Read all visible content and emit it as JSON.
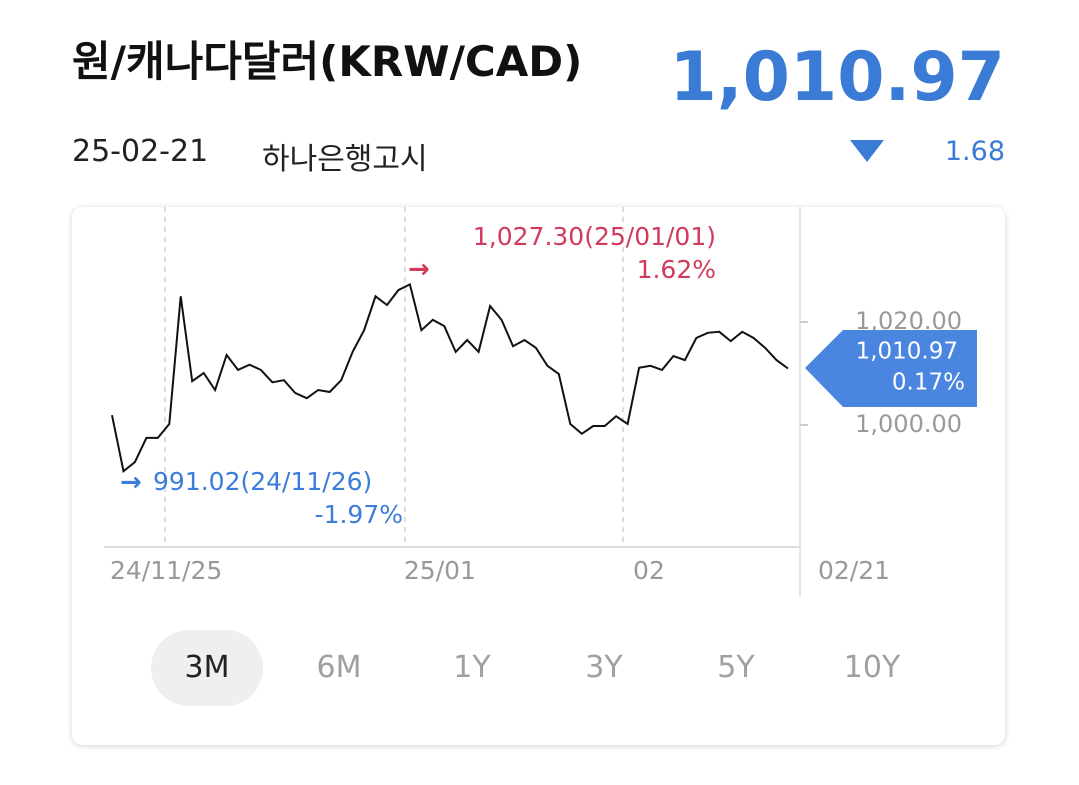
{
  "header": {
    "title": "원/캐나다달러(KRW/CAD)",
    "price": "1,010.97",
    "date": "25-02-21",
    "source": "하나은행고시",
    "change": "1.68"
  },
  "chart_data": {
    "type": "line",
    "color": "#111111",
    "categories": [
      "24/11/25",
      null,
      null,
      null,
      null,
      null,
      null,
      null,
      null,
      null,
      null,
      null,
      null,
      null,
      null,
      null,
      null,
      null,
      null,
      null,
      null,
      null,
      null,
      null,
      null,
      null,
      "25/01",
      null,
      null,
      null,
      null,
      null,
      null,
      null,
      null,
      null,
      null,
      null,
      null,
      null,
      null,
      null,
      null,
      null,
      null,
      null,
      "02",
      null,
      null,
      null,
      null,
      null,
      null,
      null,
      null,
      null,
      null,
      null,
      null,
      "02/21"
    ],
    "values": [
      1001.9,
      991.02,
      992.8,
      997.5,
      997.5,
      1000.2,
      1025.0,
      1008.5,
      1010.1,
      1006.8,
      1013.6,
      1010.7,
      1011.7,
      1010.7,
      1008.3,
      1008.7,
      1006.2,
      1005.2,
      1006.8,
      1006.4,
      1008.7,
      1014.2,
      1018.4,
      1025.0,
      1023.3,
      1026.2,
      1027.3,
      1018.4,
      1020.4,
      1019.2,
      1014.2,
      1016.5,
      1014.2,
      1023.1,
      1020.4,
      1015.3,
      1016.5,
      1015.0,
      1011.5,
      1009.9,
      1000.2,
      998.3,
      999.8,
      999.8,
      1001.7,
      1000.2,
      1011.1,
      1011.5,
      1010.7,
      1013.4,
      1012.6,
      1016.9,
      1017.9,
      1018.1,
      1016.3,
      1018.1,
      1016.9,
      1015.0,
      1012.6,
      1010.97
    ],
    "ylim": [
      976,
      1040
    ],
    "yticks": [
      {
        "value": 1000,
        "label": "1,000.00"
      },
      {
        "value": 1020,
        "label": "1,020.00"
      }
    ],
    "max_annotation": {
      "text": "1,027.30(25/01/01)",
      "change": "1.62%",
      "color": "#d23a5c"
    },
    "min_annotation": {
      "text": "991.02(24/11/26)",
      "change": "-1.97%",
      "color": "#3b7dd8"
    },
    "last_marker": {
      "text": "1,010.97",
      "change": "0.17%",
      "color": "#4a86e0"
    }
  },
  "periods": [
    "3M",
    "6M",
    "1Y",
    "3Y",
    "5Y",
    "10Y"
  ]
}
